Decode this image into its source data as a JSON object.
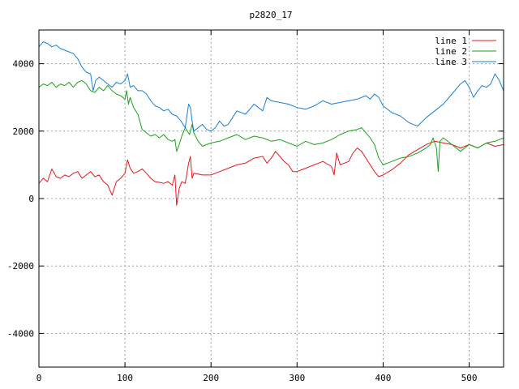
{
  "chart_data": {
    "type": "line",
    "title": "p2820_17",
    "xlabel": "",
    "ylabel": "",
    "xlim": [
      0,
      540
    ],
    "ylim": [
      -5000,
      5000
    ],
    "x_ticks": [
      0,
      100,
      200,
      300,
      400,
      500
    ],
    "y_ticks": [
      -4000,
      -2000,
      0,
      2000,
      4000
    ],
    "x_tick_labels": [
      "0",
      "100",
      "200",
      "300",
      "400",
      "500"
    ],
    "y_tick_labels": [
      "-4000",
      "-2000",
      "0",
      "2000",
      "4000"
    ],
    "grid": true,
    "legend_position": "top-right",
    "series": [
      {
        "name": "line 1",
        "color": "#e41a1c",
        "points": [
          [
            0,
            450
          ],
          [
            5,
            600
          ],
          [
            10,
            500
          ],
          [
            15,
            880
          ],
          [
            20,
            650
          ],
          [
            25,
            600
          ],
          [
            30,
            700
          ],
          [
            35,
            650
          ],
          [
            40,
            750
          ],
          [
            45,
            800
          ],
          [
            50,
            600
          ],
          [
            55,
            700
          ],
          [
            60,
            800
          ],
          [
            65,
            650
          ],
          [
            70,
            700
          ],
          [
            75,
            500
          ],
          [
            80,
            400
          ],
          [
            85,
            100
          ],
          [
            90,
            500
          ],
          [
            95,
            600
          ],
          [
            100,
            750
          ],
          [
            103,
            1150
          ],
          [
            106,
            900
          ],
          [
            110,
            750
          ],
          [
            115,
            800
          ],
          [
            120,
            880
          ],
          [
            125,
            750
          ],
          [
            130,
            600
          ],
          [
            135,
            500
          ],
          [
            140,
            480
          ],
          [
            145,
            450
          ],
          [
            150,
            500
          ],
          [
            155,
            400
          ],
          [
            158,
            700
          ],
          [
            160,
            -200
          ],
          [
            163,
            300
          ],
          [
            166,
            500
          ],
          [
            170,
            450
          ],
          [
            174,
            1050
          ],
          [
            176,
            1250
          ],
          [
            178,
            600
          ],
          [
            180,
            750
          ],
          [
            190,
            700
          ],
          [
            200,
            700
          ],
          [
            210,
            800
          ],
          [
            220,
            900
          ],
          [
            230,
            1000
          ],
          [
            240,
            1050
          ],
          [
            250,
            1200
          ],
          [
            260,
            1250
          ],
          [
            265,
            1050
          ],
          [
            270,
            1200
          ],
          [
            275,
            1400
          ],
          [
            280,
            1250
          ],
          [
            285,
            1100
          ],
          [
            290,
            1000
          ],
          [
            295,
            800
          ],
          [
            300,
            800
          ],
          [
            310,
            900
          ],
          [
            320,
            1000
          ],
          [
            330,
            1100
          ],
          [
            340,
            950
          ],
          [
            343,
            700
          ],
          [
            346,
            1350
          ],
          [
            350,
            1000
          ],
          [
            355,
            1050
          ],
          [
            360,
            1100
          ],
          [
            365,
            1350
          ],
          [
            370,
            1500
          ],
          [
            375,
            1400
          ],
          [
            380,
            1200
          ],
          [
            385,
            1000
          ],
          [
            390,
            800
          ],
          [
            395,
            650
          ],
          [
            400,
            700
          ],
          [
            410,
            850
          ],
          [
            420,
            1050
          ],
          [
            430,
            1300
          ],
          [
            440,
            1450
          ],
          [
            450,
            1600
          ],
          [
            460,
            1700
          ],
          [
            470,
            1650
          ],
          [
            480,
            1600
          ],
          [
            490,
            1500
          ],
          [
            500,
            1600
          ],
          [
            510,
            1500
          ],
          [
            520,
            1650
          ],
          [
            530,
            1550
          ],
          [
            540,
            1600
          ]
        ]
      },
      {
        "name": "line 2",
        "color": "#1aa31a",
        "points": [
          [
            0,
            3300
          ],
          [
            5,
            3400
          ],
          [
            10,
            3350
          ],
          [
            15,
            3450
          ],
          [
            20,
            3300
          ],
          [
            25,
            3400
          ],
          [
            30,
            3350
          ],
          [
            35,
            3450
          ],
          [
            40,
            3300
          ],
          [
            45,
            3450
          ],
          [
            50,
            3500
          ],
          [
            55,
            3400
          ],
          [
            60,
            3200
          ],
          [
            65,
            3150
          ],
          [
            70,
            3300
          ],
          [
            75,
            3200
          ],
          [
            80,
            3350
          ],
          [
            85,
            3200
          ],
          [
            90,
            3100
          ],
          [
            95,
            3050
          ],
          [
            100,
            2950
          ],
          [
            102,
            3200
          ],
          [
            104,
            2800
          ],
          [
            106,
            3000
          ],
          [
            110,
            2700
          ],
          [
            115,
            2500
          ],
          [
            120,
            2050
          ],
          [
            125,
            1950
          ],
          [
            130,
            1850
          ],
          [
            135,
            1900
          ],
          [
            140,
            1800
          ],
          [
            145,
            1900
          ],
          [
            150,
            1750
          ],
          [
            155,
            1700
          ],
          [
            158,
            1750
          ],
          [
            160,
            1400
          ],
          [
            163,
            1600
          ],
          [
            166,
            1850
          ],
          [
            170,
            2100
          ],
          [
            175,
            1900
          ],
          [
            178,
            2200
          ],
          [
            180,
            1950
          ],
          [
            185,
            1700
          ],
          [
            190,
            1550
          ],
          [
            195,
            1600
          ],
          [
            200,
            1650
          ],
          [
            210,
            1700
          ],
          [
            220,
            1800
          ],
          [
            230,
            1900
          ],
          [
            240,
            1750
          ],
          [
            250,
            1850
          ],
          [
            260,
            1800
          ],
          [
            270,
            1700
          ],
          [
            280,
            1750
          ],
          [
            290,
            1650
          ],
          [
            300,
            1550
          ],
          [
            310,
            1700
          ],
          [
            320,
            1600
          ],
          [
            330,
            1650
          ],
          [
            340,
            1750
          ],
          [
            350,
            1900
          ],
          [
            360,
            2000
          ],
          [
            370,
            2050
          ],
          [
            375,
            2100
          ],
          [
            380,
            1950
          ],
          [
            385,
            1800
          ],
          [
            390,
            1600
          ],
          [
            395,
            1200
          ],
          [
            400,
            1000
          ],
          [
            405,
            1050
          ],
          [
            410,
            1100
          ],
          [
            420,
            1200
          ],
          [
            430,
            1250
          ],
          [
            440,
            1350
          ],
          [
            450,
            1500
          ],
          [
            455,
            1600
          ],
          [
            458,
            1800
          ],
          [
            462,
            1500
          ],
          [
            464,
            800
          ],
          [
            466,
            1700
          ],
          [
            470,
            1800
          ],
          [
            480,
            1600
          ],
          [
            490,
            1400
          ],
          [
            500,
            1600
          ],
          [
            510,
            1500
          ],
          [
            520,
            1650
          ],
          [
            530,
            1700
          ],
          [
            540,
            1800
          ]
        ]
      },
      {
        "name": "line 3",
        "color": "#1a7fd6",
        "points": [
          [
            0,
            4500
          ],
          [
            5,
            4650
          ],
          [
            10,
            4600
          ],
          [
            15,
            4500
          ],
          [
            20,
            4550
          ],
          [
            25,
            4450
          ],
          [
            30,
            4400
          ],
          [
            35,
            4350
          ],
          [
            40,
            4300
          ],
          [
            45,
            4150
          ],
          [
            50,
            3900
          ],
          [
            55,
            3750
          ],
          [
            60,
            3700
          ],
          [
            63,
            3200
          ],
          [
            66,
            3500
          ],
          [
            70,
            3600
          ],
          [
            75,
            3500
          ],
          [
            80,
            3400
          ],
          [
            85,
            3300
          ],
          [
            90,
            3450
          ],
          [
            95,
            3400
          ],
          [
            100,
            3500
          ],
          [
            103,
            3700
          ],
          [
            106,
            3300
          ],
          [
            110,
            3350
          ],
          [
            115,
            3200
          ],
          [
            120,
            3200
          ],
          [
            125,
            3100
          ],
          [
            130,
            2900
          ],
          [
            135,
            2750
          ],
          [
            140,
            2700
          ],
          [
            145,
            2600
          ],
          [
            150,
            2650
          ],
          [
            155,
            2500
          ],
          [
            160,
            2450
          ],
          [
            165,
            2300
          ],
          [
            170,
            2100
          ],
          [
            174,
            2800
          ],
          [
            176,
            2700
          ],
          [
            178,
            2300
          ],
          [
            180,
            2000
          ],
          [
            185,
            2100
          ],
          [
            190,
            2200
          ],
          [
            195,
            2050
          ],
          [
            200,
            2000
          ],
          [
            205,
            2100
          ],
          [
            210,
            2300
          ],
          [
            215,
            2150
          ],
          [
            220,
            2200
          ],
          [
            225,
            2400
          ],
          [
            230,
            2600
          ],
          [
            240,
            2500
          ],
          [
            250,
            2800
          ],
          [
            260,
            2600
          ],
          [
            265,
            3000
          ],
          [
            270,
            2900
          ],
          [
            280,
            2850
          ],
          [
            290,
            2800
          ],
          [
            300,
            2700
          ],
          [
            310,
            2650
          ],
          [
            320,
            2750
          ],
          [
            330,
            2900
          ],
          [
            340,
            2800
          ],
          [
            350,
            2850
          ],
          [
            360,
            2900
          ],
          [
            370,
            2950
          ],
          [
            380,
            3050
          ],
          [
            385,
            2950
          ],
          [
            390,
            3100
          ],
          [
            395,
            3000
          ],
          [
            400,
            2750
          ],
          [
            410,
            2550
          ],
          [
            420,
            2450
          ],
          [
            430,
            2250
          ],
          [
            440,
            2150
          ],
          [
            450,
            2400
          ],
          [
            460,
            2600
          ],
          [
            470,
            2800
          ],
          [
            480,
            3100
          ],
          [
            490,
            3400
          ],
          [
            495,
            3500
          ],
          [
            500,
            3300
          ],
          [
            505,
            3000
          ],
          [
            510,
            3200
          ],
          [
            515,
            3350
          ],
          [
            520,
            3300
          ],
          [
            525,
            3400
          ],
          [
            530,
            3700
          ],
          [
            535,
            3500
          ],
          [
            540,
            3200
          ]
        ]
      }
    ]
  }
}
